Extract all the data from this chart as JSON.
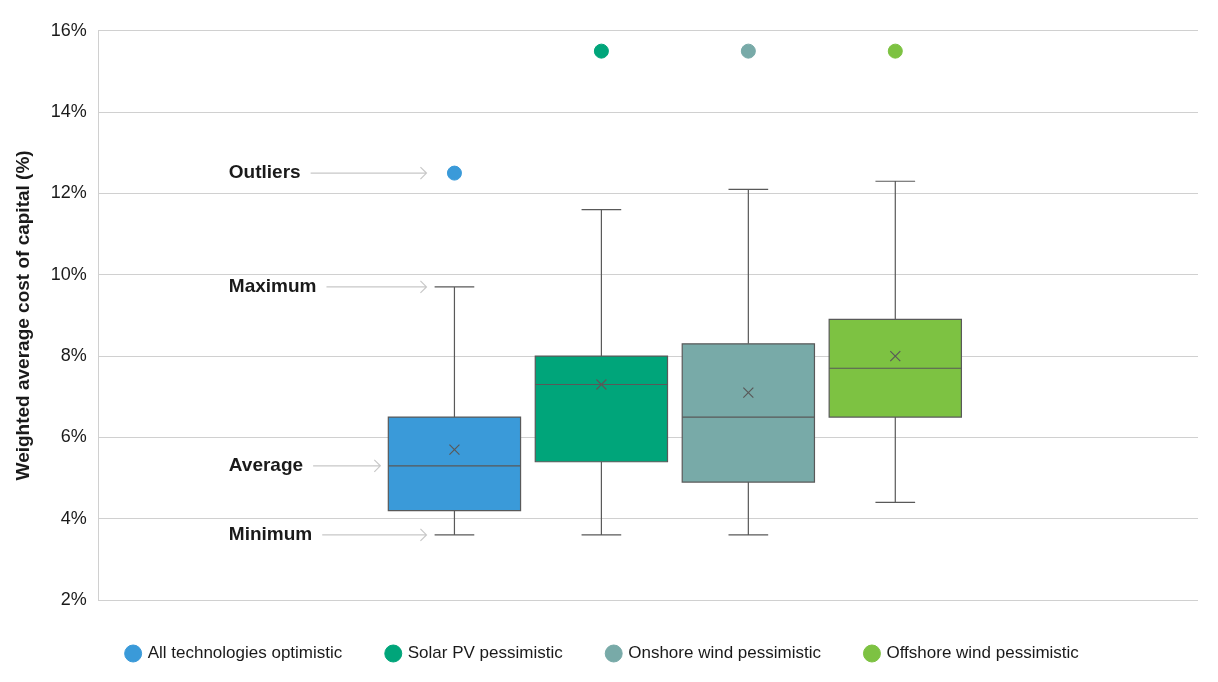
{
  "chart_data": {
    "type": "box",
    "ylabel": "Weighted average cost of capital (%)",
    "categories": [
      null
    ],
    "series": [
      {
        "name": "All technologies optimistic",
        "color": "#3a9ad9",
        "boxes": [
          {
            "low": 3.6,
            "q1": 4.2,
            "median": 5.3,
            "q3": 6.5,
            "high": 9.7,
            "mean": 5.7,
            "outliers": [
              12.5
            ]
          }
        ]
      },
      {
        "name": "Solar PV pessimistic",
        "color": "#00a57a",
        "boxes": [
          {
            "low": 3.6,
            "q1": 5.4,
            "median": 7.3,
            "q3": 8.0,
            "high": 11.6,
            "mean": 7.3,
            "outliers": [
              15.5
            ]
          }
        ]
      },
      {
        "name": "Onshore wind pessimistic",
        "color": "#78aaa8",
        "boxes": [
          {
            "low": 3.6,
            "q1": 4.9,
            "median": 6.5,
            "q3": 8.3,
            "high": 12.1,
            "mean": 7.1,
            "outliers": [
              15.5
            ]
          }
        ]
      },
      {
        "name": "Offshore wind pessimistic",
        "color": "#7dc242",
        "boxes": [
          {
            "low": 4.4,
            "q1": 6.5,
            "median": 7.7,
            "q3": 8.9,
            "high": 12.3,
            "mean": 8.0,
            "outliers": [
              15.5
            ]
          }
        ]
      }
    ],
    "ylim": [
      2,
      16
    ],
    "yticks": [
      {
        "value": 2,
        "label": "2%"
      },
      {
        "value": 4,
        "label": "4%"
      },
      {
        "value": 6,
        "label": "6%"
      },
      {
        "value": 8,
        "label": "8%"
      },
      {
        "value": 10,
        "label": "10%"
      },
      {
        "value": 12,
        "label": "12%"
      },
      {
        "value": 14,
        "label": "14%"
      },
      {
        "value": 16,
        "label": "16%"
      }
    ],
    "grid": "y",
    "legend": "bottom",
    "annotations": [
      "Outliers",
      "Maximum",
      "Average",
      "Minimum"
    ]
  }
}
